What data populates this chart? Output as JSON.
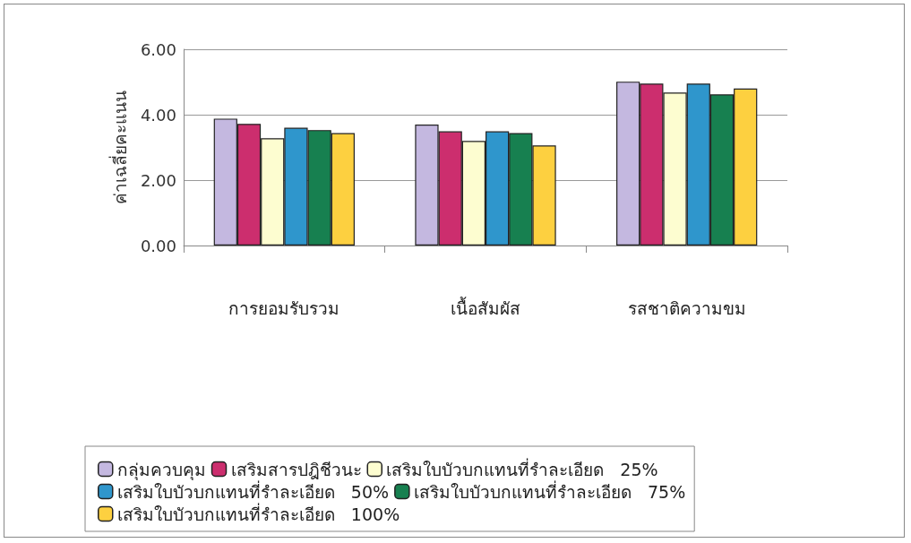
{
  "chart_data": {
    "type": "bar",
    "ylabel": "ค่าเฉลี่ยคะแนน",
    "categories": [
      "การยอมรับรวม",
      "เนื้อสัมผัส",
      "รสชาติความขม"
    ],
    "series": [
      {
        "name": "กลุ่มควบคุม",
        "color": "#c4b8e0",
        "values": [
          3.88,
          3.7,
          5.01
        ]
      },
      {
        "name": "เสริมสารปฎิชีวนะ",
        "color": "#cc2e6e",
        "values": [
          3.72,
          3.49,
          4.95
        ]
      },
      {
        "name": "เสริมใบบัวบกแทนที่รำละเอียด   25%",
        "color": "#fdfdd0",
        "values": [
          3.28,
          3.2,
          4.68
        ]
      },
      {
        "name": "เสริมใบบัวบกแทนที่รำละเอียด   50%",
        "color": "#2f96cc",
        "values": [
          3.6,
          3.49,
          4.95
        ]
      },
      {
        "name": "เสริมใบบัวบกแทนที่รำละเอียด   75%",
        "color": "#178050",
        "values": [
          3.53,
          3.44,
          4.62
        ]
      },
      {
        "name": "เสริมใบบัวบกแทนที่รำละเอียด   100%",
        "color": "#fdd040",
        "values": [
          3.44,
          3.06,
          4.8
        ]
      }
    ],
    "ylim": [
      0,
      6
    ],
    "yticks": [
      {
        "value": 0,
        "label": "0.00"
      },
      {
        "value": 2,
        "label": "2.00"
      },
      {
        "value": 4,
        "label": "4.00"
      },
      {
        "value": 6,
        "label": "6.00"
      }
    ],
    "grid": "y",
    "legend": "bottom"
  }
}
